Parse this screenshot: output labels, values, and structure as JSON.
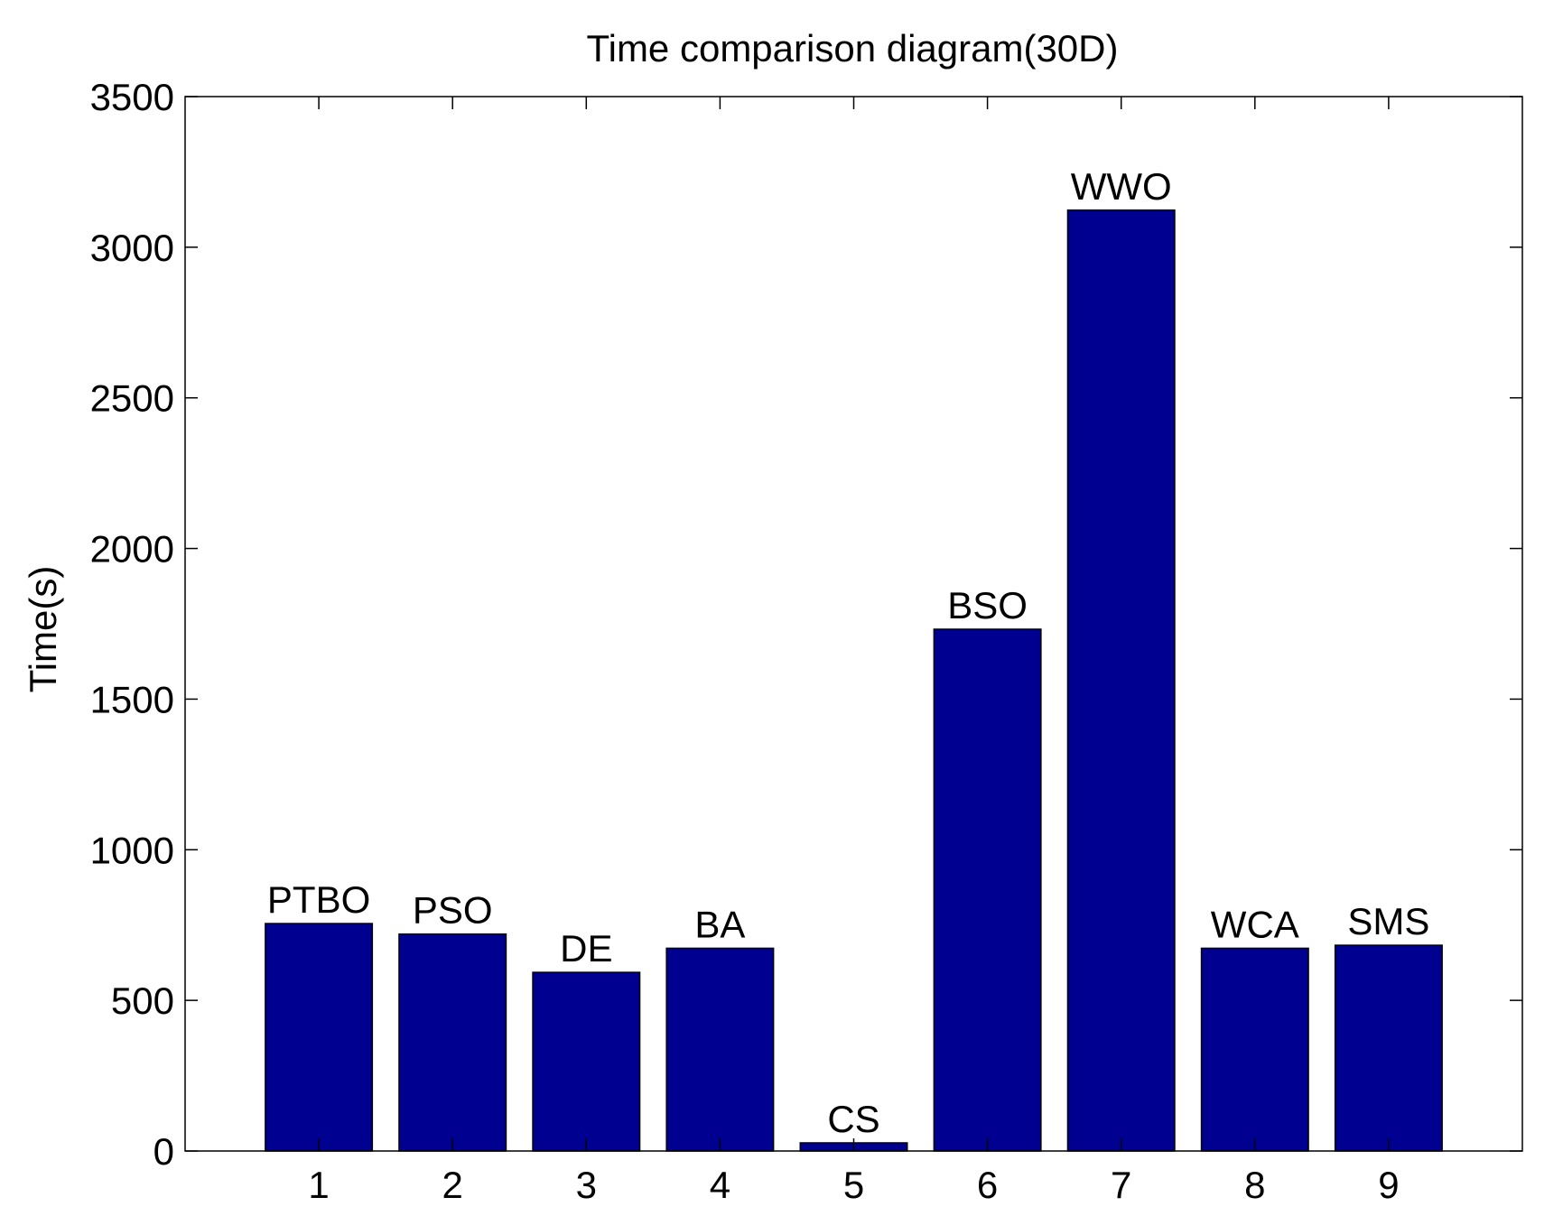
{
  "chart_data": {
    "type": "bar",
    "title": "Time comparison diagram(30D)",
    "xlabel": "",
    "ylabel": "Time(s)",
    "categories": [
      "1",
      "2",
      "3",
      "4",
      "5",
      "6",
      "7",
      "8",
      "9"
    ],
    "values": [
      755,
      720,
      593,
      673,
      27,
      1732,
      3123,
      673,
      683
    ],
    "bar_labels": [
      "PTBO",
      "PSO",
      "DE",
      "BA",
      "CS",
      "BSO",
      "WWO",
      "WCA",
      "SMS"
    ],
    "ylim": [
      0,
      3500
    ],
    "yticks": [
      0,
      500,
      1000,
      1500,
      2000,
      2500,
      3000,
      3500
    ],
    "xlim": [
      0,
      10
    ],
    "grid": false,
    "legend": "none",
    "colors": {
      "bar_fill": "#000090",
      "bar_edge": "#000000",
      "axes": "#000000",
      "background": "#ffffff"
    }
  }
}
